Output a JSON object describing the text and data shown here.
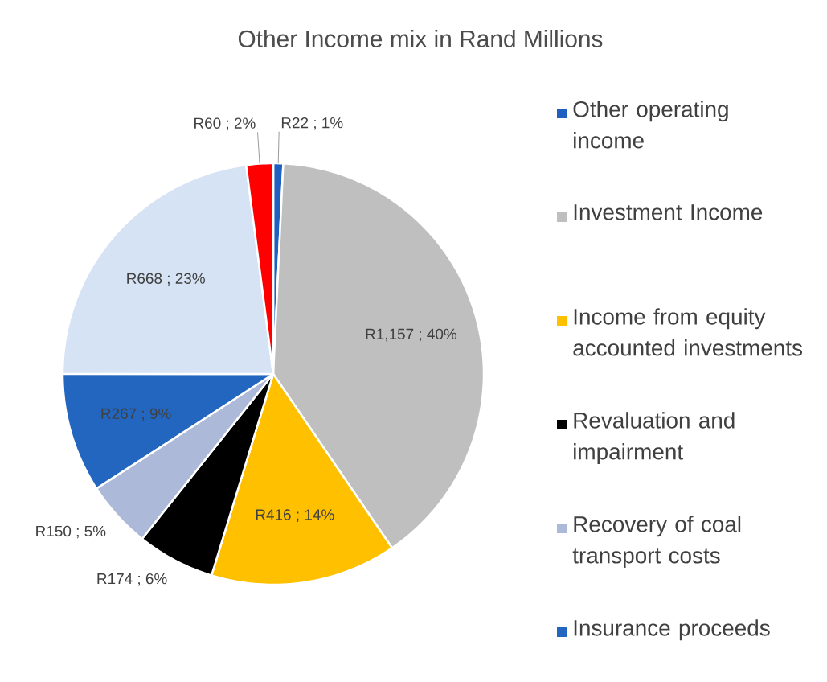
{
  "chart_data": {
    "type": "pie",
    "title": "Other Income mix in Rand Millions",
    "categories": [
      "Other operating income",
      "Investment Income",
      "Income from equity accounted investments",
      "Revaluation and impairment",
      "Recovery of coal transport costs",
      "Insurance proceeds",
      null,
      null
    ],
    "values": [
      22,
      1157,
      416,
      174,
      150,
      267,
      668,
      60
    ],
    "colors": [
      "#1f5fbf",
      "#bfbfbf",
      "#ffc000",
      "#000000",
      "#adb9d8",
      "#2266c0",
      "#d6e3f5",
      "#ff0000"
    ],
    "value_labels": [
      "R22 ; 1%",
      "R1,157 ; 40%",
      "R416 ; 14%",
      "R174 ; 6%",
      "R150 ; 5%",
      "R267 ; 9%",
      "R668 ; 23%",
      "R60 ; 2%"
    ],
    "legend": "right"
  }
}
